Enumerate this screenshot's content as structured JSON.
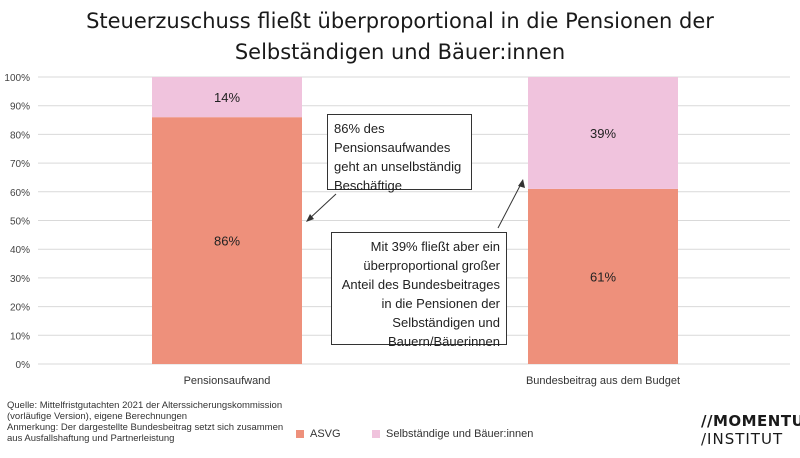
{
  "title_lines": [
    "Steuerzuschuss fließt überproportional in die Pensionen der",
    "Selbständigen und Bäuer:innen"
  ],
  "chart_data": {
    "type": "bar",
    "stacked": true,
    "categories": [
      "Pensionsaufwand",
      "Bundesbeitrag aus dem Budget"
    ],
    "series": [
      {
        "name": "ASVG",
        "values": [
          86,
          61
        ],
        "labels": [
          "86%",
          "61%"
        ],
        "color": "#ee907b"
      },
      {
        "name": "Selbständige und Bäuer:innen",
        "values": [
          14,
          39
        ],
        "labels": [
          "14%",
          "39%"
        ],
        "color": "#f0c3dd"
      }
    ],
    "ylim": [
      0,
      100
    ],
    "yticks": [
      "0%",
      "10%",
      "20%",
      "30%",
      "40%",
      "50%",
      "60%",
      "70%",
      "80%",
      "90%",
      "100%"
    ],
    "grid": true,
    "legend_position": "bottom",
    "annotations": [
      [
        "86% des",
        "Pensionsaufwandes",
        "geht an unselbständig",
        "Beschäftige"
      ],
      [
        "Mit 39% fließt aber ein",
        "überproportional großer",
        "Anteil des Bundesbeitrages",
        "in die Pensionen der",
        "Selbständigen und",
        "Bauern/Bäuerinnen"
      ]
    ]
  },
  "source_lines": [
    "Quelle: Mittelfristgutachten 2021 der Alterssicherungskommission",
    "(vorläufige Version), eigene Berechnungen",
    "Anmerkung: Der dargestellte Bundesbeitrag setzt sich zusammen",
    "aus Ausfallshaftung und Partnerleistung"
  ],
  "logo": {
    "line1": "//MOMENTUM",
    "line2": "/INSTITUT"
  }
}
